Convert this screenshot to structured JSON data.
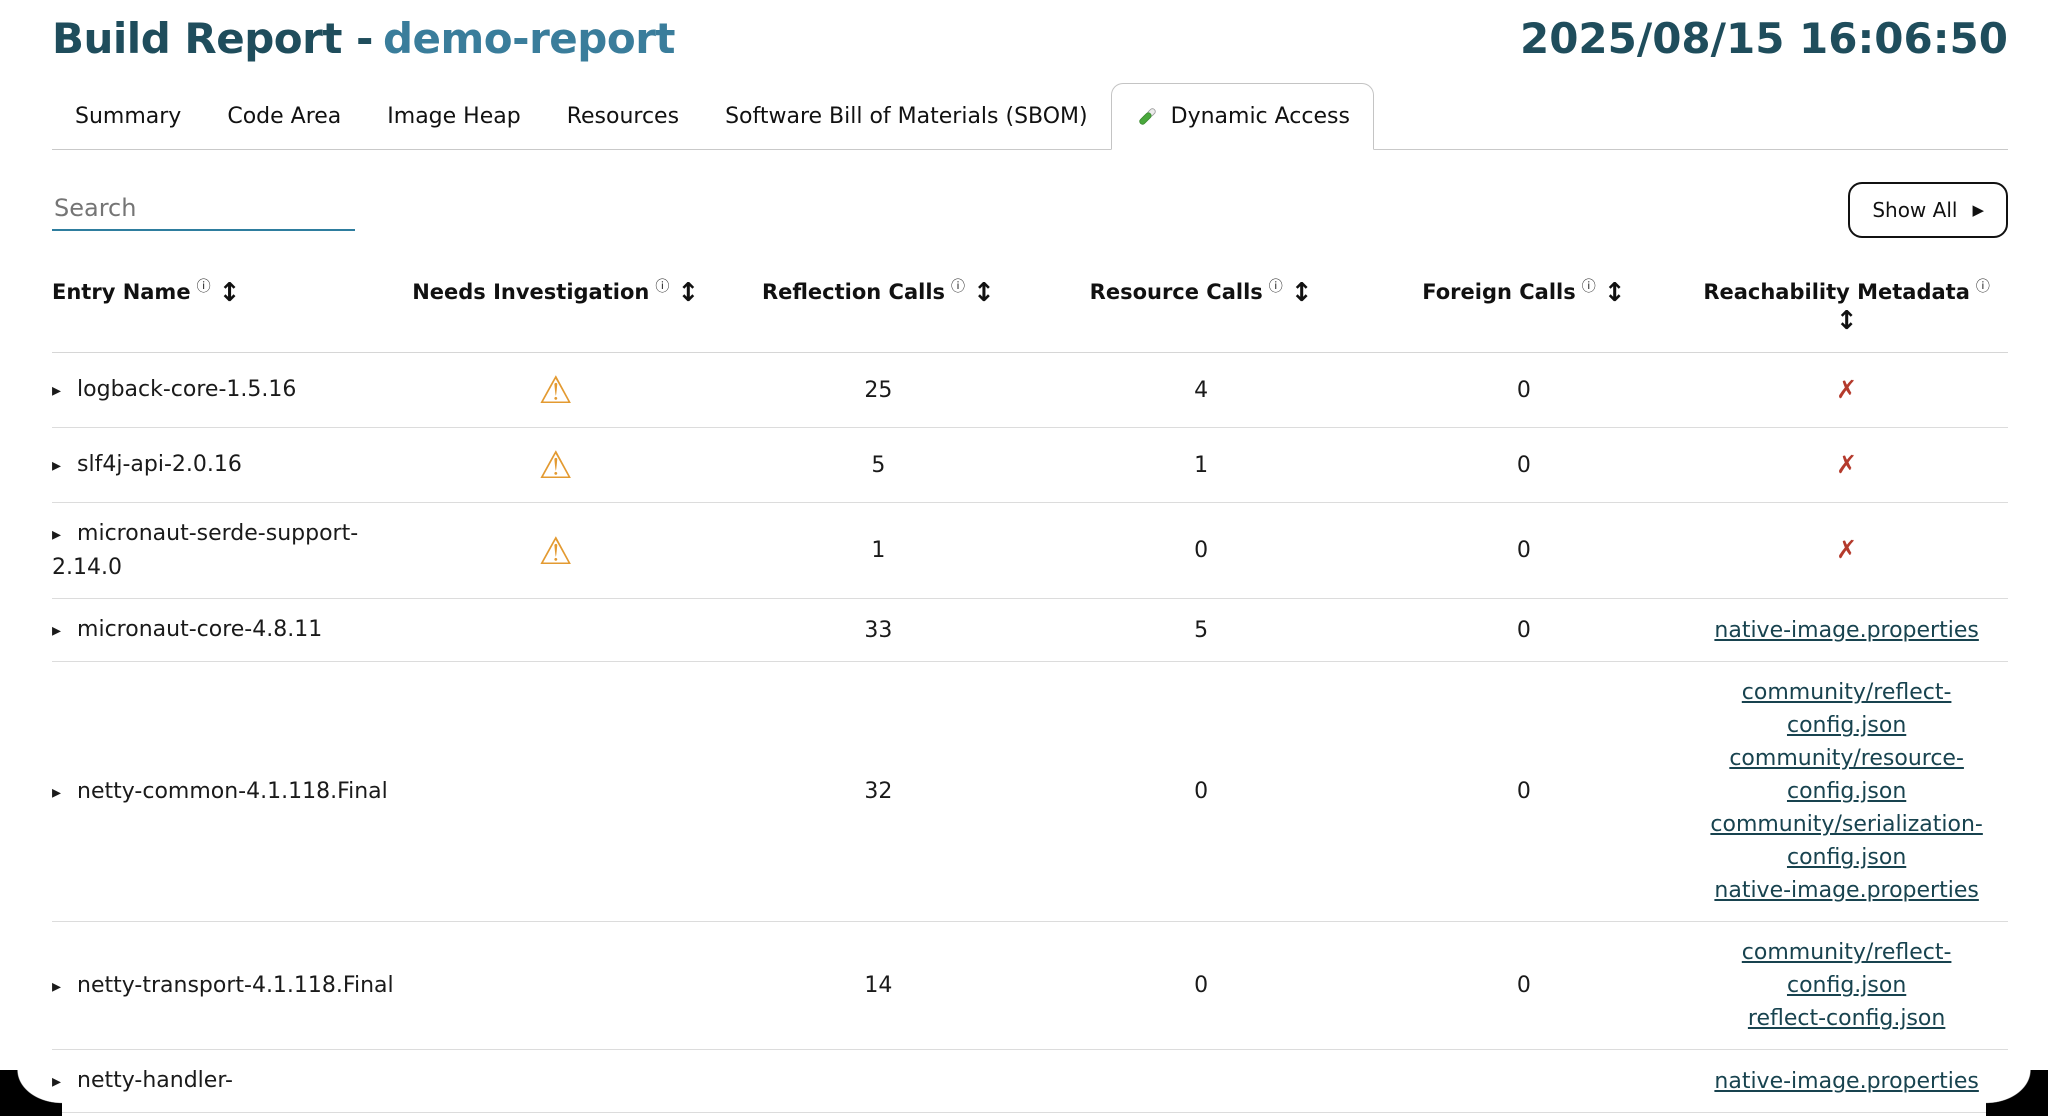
{
  "header": {
    "title_prefix": "Build Report -",
    "report_name": "demo-report",
    "timestamp": "2025/08/15 16:06:50"
  },
  "tabs": [
    {
      "id": "summary",
      "label": "Summary",
      "active": false
    },
    {
      "id": "code-area",
      "label": "Code Area",
      "active": false
    },
    {
      "id": "image-heap",
      "label": "Image Heap",
      "active": false
    },
    {
      "id": "resources",
      "label": "Resources",
      "active": false
    },
    {
      "id": "sbom",
      "label": "Software Bill of Materials (SBOM)",
      "active": false
    },
    {
      "id": "dynamic-access",
      "label": "Dynamic Access",
      "active": true,
      "icon": "test-tube-icon"
    }
  ],
  "toolbar": {
    "search_placeholder": "Search",
    "show_all_label": "Show All"
  },
  "table": {
    "columns": [
      {
        "id": "entry-name",
        "label": "Entry Name",
        "align": "left"
      },
      {
        "id": "needs-investigation",
        "label": "Needs Investigation",
        "align": "center"
      },
      {
        "id": "reflection-calls",
        "label": "Reflection Calls",
        "align": "center"
      },
      {
        "id": "resource-calls",
        "label": "Resource Calls",
        "align": "center"
      },
      {
        "id": "foreign-calls",
        "label": "Foreign Calls",
        "align": "center"
      },
      {
        "id": "reachability-metadata",
        "label": "Reachability Metadata",
        "align": "center",
        "sort_on_new_line": true
      }
    ],
    "rows": [
      {
        "entry_name": "logback-core-1.5.16",
        "needs_investigation": true,
        "reflection_calls": "25",
        "resource_calls": "4",
        "foreign_calls": "0",
        "reachability_links": [],
        "reachability_missing": true
      },
      {
        "entry_name": "slf4j-api-2.0.16",
        "needs_investigation": true,
        "reflection_calls": "5",
        "resource_calls": "1",
        "foreign_calls": "0",
        "reachability_links": [],
        "reachability_missing": true
      },
      {
        "entry_name": "micronaut-serde-support-2.14.0",
        "needs_investigation": true,
        "reflection_calls": "1",
        "resource_calls": "0",
        "foreign_calls": "0",
        "reachability_links": [],
        "reachability_missing": true
      },
      {
        "entry_name": "micronaut-core-4.8.11",
        "needs_investigation": false,
        "reflection_calls": "33",
        "resource_calls": "5",
        "foreign_calls": "0",
        "reachability_links": [
          "native-image.properties"
        ],
        "reachability_missing": false
      },
      {
        "entry_name": "netty-common-4.1.118.Final",
        "needs_investigation": false,
        "reflection_calls": "32",
        "resource_calls": "0",
        "foreign_calls": "0",
        "reachability_links": [
          "community/reflect-config.json",
          "community/resource-config.json",
          "community/serialization-config.json",
          "native-image.properties"
        ],
        "reachability_missing": false
      },
      {
        "entry_name": "netty-transport-4.1.118.Final",
        "needs_investigation": false,
        "reflection_calls": "14",
        "resource_calls": "0",
        "foreign_calls": "0",
        "reachability_links": [
          "community/reflect-config.json",
          "reflect-config.json"
        ],
        "reachability_missing": false
      },
      {
        "entry_name": "netty-handler-",
        "needs_investigation": false,
        "reflection_calls": "",
        "resource_calls": "",
        "foreign_calls": "",
        "reachability_links": [
          "native-image.properties"
        ],
        "reachability_missing": false
      }
    ]
  },
  "icons": {
    "info": "ⓘ",
    "sort": "↕",
    "expander": "▸",
    "warning": "⚠",
    "missing": "✗",
    "show_all_arrow": "▶"
  },
  "colors": {
    "title_dark": "#1f4d5c",
    "title_accent": "#3a7d9b",
    "link": "#18434f",
    "search_underline": "#2e7d9e",
    "warning": "#e39a31",
    "missing_x": "#b43a2c"
  }
}
